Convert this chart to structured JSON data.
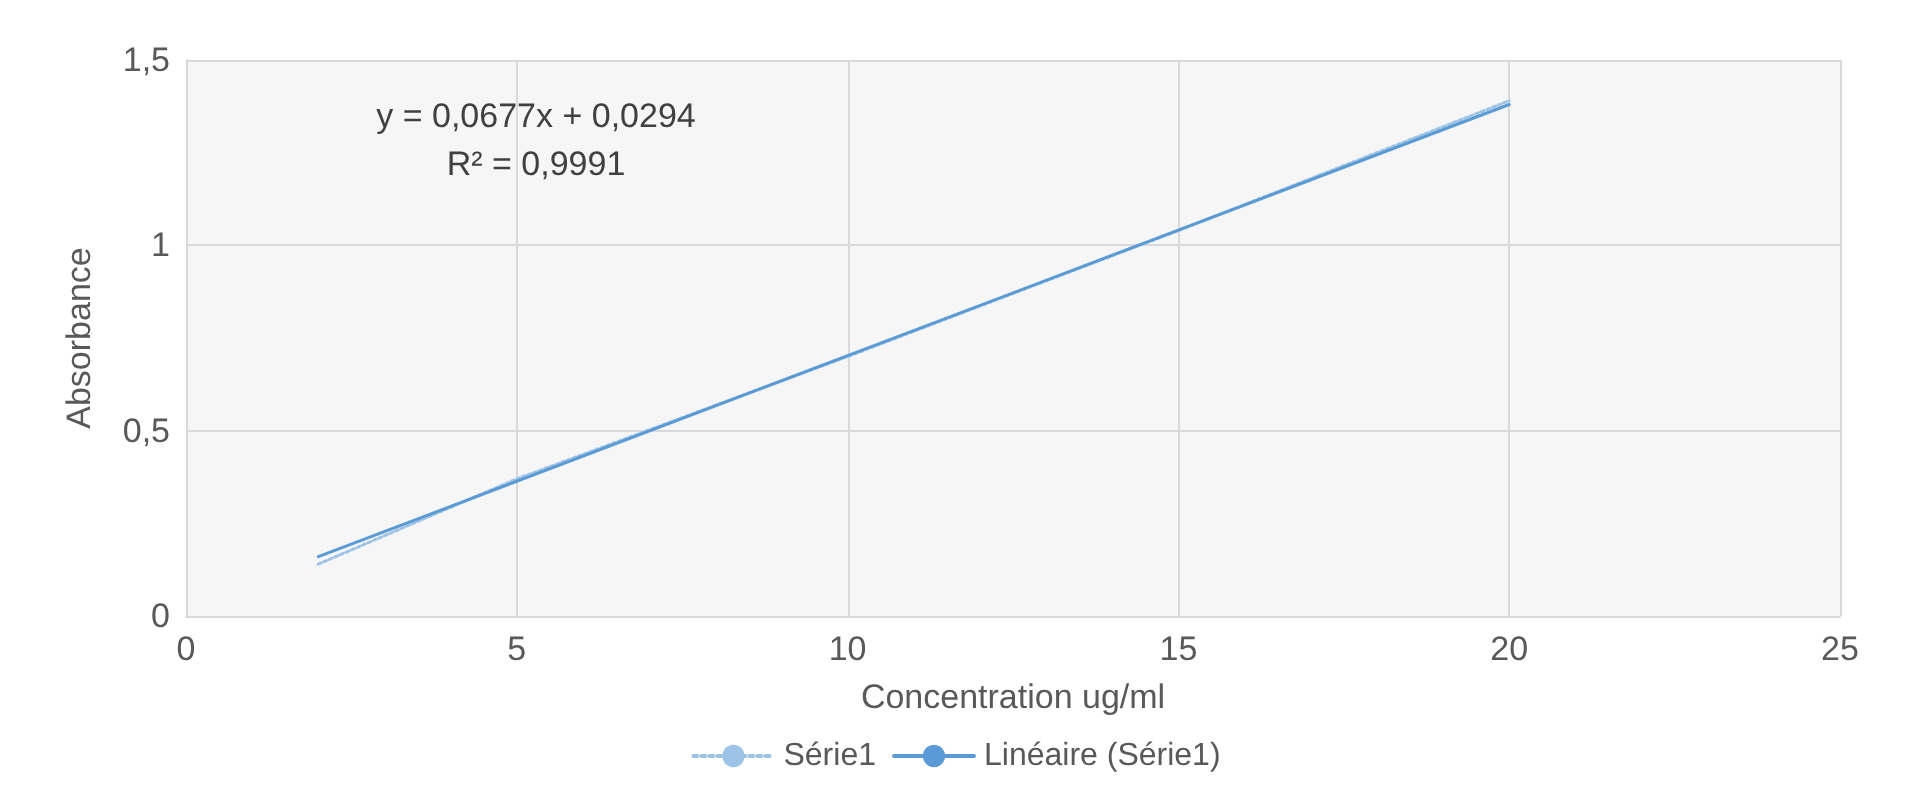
{
  "chart_data": {
    "type": "line",
    "xlabel": "Concentration ug/ml",
    "ylabel": "Absorbance",
    "x": [
      2,
      5,
      10,
      15,
      20
    ],
    "series": [
      {
        "name": "Série1",
        "color": "#9dc3e6",
        "values": [
          0.14,
          0.37,
          0.7,
          1.04,
          1.39
        ],
        "line_style": "dotted"
      },
      {
        "name": "Linéaire (Série1)",
        "type": "line",
        "color": "#5b9bd5",
        "x": [
          2,
          20
        ],
        "values": [
          0.16,
          1.38
        ],
        "line_style": "solid"
      }
    ],
    "xlim": [
      0,
      25
    ],
    "xticks": [
      0,
      5,
      10,
      15,
      20,
      25
    ],
    "ylim": [
      0,
      1.5
    ],
    "yticks": [
      0,
      {
        "value": 0.5,
        "label": "0,5"
      },
      1,
      {
        "value": 1.5,
        "label": "1,5"
      }
    ],
    "grid": true,
    "legend": "bottom",
    "marker": "none",
    "annotations": [
      "y = 0,0677x + 0,0294",
      "R² = 0,9991"
    ]
  }
}
